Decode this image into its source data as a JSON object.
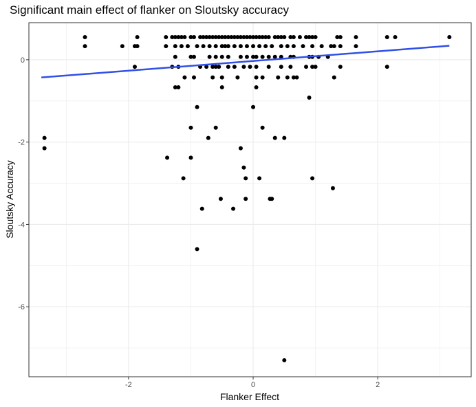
{
  "chart_data": {
    "type": "scatter",
    "title": "Significant main effect of flanker on Sloutsky accuracy",
    "xlabel": "Flanker Effect",
    "ylabel": "Sloutsky Accuracy",
    "xlim": [
      -3.6,
      3.5
    ],
    "ylim": [
      -7.7,
      0.9
    ],
    "x_ticks": [
      -2,
      0,
      2
    ],
    "y_ticks": [
      -6,
      -4,
      -2,
      0
    ],
    "grid": true,
    "colors": {
      "points": "#000000",
      "fit_line": "#3050e6",
      "grid": "#ebebeb",
      "panel_border": "#333333"
    },
    "fit_line": {
      "x": [
        -3.4,
        3.15
      ],
      "y": [
        -0.43,
        0.34
      ]
    },
    "points": [
      [
        -2.7,
        0.55
      ],
      [
        -2.7,
        0.33
      ],
      [
        -2.1,
        0.33
      ],
      [
        -1.9,
        0.33
      ],
      [
        -1.86,
        0.33
      ],
      [
        -1.86,
        0.55
      ],
      [
        -1.9,
        -0.17
      ],
      [
        -1.4,
        0.55
      ],
      [
        -1.3,
        0.55
      ],
      [
        -1.25,
        0.55
      ],
      [
        -1.2,
        0.55
      ],
      [
        -1.15,
        0.55
      ],
      [
        -1.1,
        0.55
      ],
      [
        -1.0,
        0.55
      ],
      [
        -0.95,
        0.55
      ],
      [
        -0.85,
        0.55
      ],
      [
        -0.8,
        0.55
      ],
      [
        -0.75,
        0.55
      ],
      [
        -0.7,
        0.55
      ],
      [
        -0.65,
        0.55
      ],
      [
        -0.6,
        0.55
      ],
      [
        -0.55,
        0.55
      ],
      [
        -0.5,
        0.55
      ],
      [
        -0.45,
        0.55
      ],
      [
        -0.4,
        0.55
      ],
      [
        -0.35,
        0.55
      ],
      [
        -0.3,
        0.55
      ],
      [
        -0.25,
        0.55
      ],
      [
        -0.2,
        0.55
      ],
      [
        -0.15,
        0.55
      ],
      [
        -0.1,
        0.55
      ],
      [
        -0.05,
        0.55
      ],
      [
        0.0,
        0.55
      ],
      [
        0.05,
        0.55
      ],
      [
        0.1,
        0.55
      ],
      [
        0.15,
        0.55
      ],
      [
        0.2,
        0.55
      ],
      [
        0.25,
        0.55
      ],
      [
        0.35,
        0.55
      ],
      [
        0.4,
        0.55
      ],
      [
        0.45,
        0.55
      ],
      [
        0.5,
        0.55
      ],
      [
        0.6,
        0.55
      ],
      [
        0.65,
        0.55
      ],
      [
        0.75,
        0.55
      ],
      [
        0.85,
        0.55
      ],
      [
        0.9,
        0.55
      ],
      [
        0.95,
        0.55
      ],
      [
        1.0,
        0.55
      ],
      [
        1.35,
        0.55
      ],
      [
        1.4,
        0.55
      ],
      [
        1.65,
        0.55
      ],
      [
        2.15,
        0.55
      ],
      [
        2.28,
        0.55
      ],
      [
        3.15,
        0.55
      ],
      [
        -1.4,
        0.33
      ],
      [
        -1.25,
        0.33
      ],
      [
        -1.15,
        0.33
      ],
      [
        -1.05,
        0.33
      ],
      [
        -0.9,
        0.33
      ],
      [
        -0.8,
        0.33
      ],
      [
        -0.7,
        0.33
      ],
      [
        -0.6,
        0.33
      ],
      [
        -0.5,
        0.33
      ],
      [
        -0.45,
        0.33
      ],
      [
        -0.4,
        0.33
      ],
      [
        -0.3,
        0.33
      ],
      [
        -0.2,
        0.33
      ],
      [
        -0.1,
        0.33
      ],
      [
        0.0,
        0.33
      ],
      [
        0.1,
        0.33
      ],
      [
        0.2,
        0.33
      ],
      [
        0.3,
        0.33
      ],
      [
        0.45,
        0.33
      ],
      [
        0.55,
        0.33
      ],
      [
        0.65,
        0.33
      ],
      [
        0.8,
        0.33
      ],
      [
        0.95,
        0.33
      ],
      [
        1.1,
        0.33
      ],
      [
        1.25,
        0.33
      ],
      [
        1.3,
        0.33
      ],
      [
        1.4,
        0.33
      ],
      [
        1.65,
        0.33
      ],
      [
        -1.25,
        0.07
      ],
      [
        -1.0,
        0.07
      ],
      [
        -0.95,
        0.07
      ],
      [
        -0.7,
        0.07
      ],
      [
        -0.6,
        0.07
      ],
      [
        -0.5,
        0.07
      ],
      [
        -0.4,
        0.07
      ],
      [
        -0.2,
        0.07
      ],
      [
        -0.1,
        0.07
      ],
      [
        0.0,
        0.07
      ],
      [
        0.05,
        0.07
      ],
      [
        0.15,
        0.07
      ],
      [
        0.25,
        0.07
      ],
      [
        0.35,
        0.07
      ],
      [
        0.45,
        0.07
      ],
      [
        0.6,
        0.07
      ],
      [
        0.65,
        0.07
      ],
      [
        0.9,
        0.07
      ],
      [
        0.95,
        0.07
      ],
      [
        1.05,
        0.07
      ],
      [
        1.2,
        0.07
      ],
      [
        -1.3,
        -0.17
      ],
      [
        -1.2,
        -0.17
      ],
      [
        -0.85,
        -0.17
      ],
      [
        -0.75,
        -0.17
      ],
      [
        -0.65,
        -0.17
      ],
      [
        -0.6,
        -0.17
      ],
      [
        -0.55,
        -0.17
      ],
      [
        -0.4,
        -0.17
      ],
      [
        -0.3,
        -0.17
      ],
      [
        -0.15,
        -0.17
      ],
      [
        -0.05,
        -0.17
      ],
      [
        0.05,
        -0.17
      ],
      [
        0.25,
        -0.17
      ],
      [
        0.45,
        -0.17
      ],
      [
        0.6,
        -0.17
      ],
      [
        0.85,
        -0.17
      ],
      [
        0.95,
        -0.17
      ],
      [
        1.0,
        -0.17
      ],
      [
        1.4,
        -0.17
      ],
      [
        2.15,
        -0.17
      ],
      [
        -1.1,
        -0.43
      ],
      [
        -0.95,
        -0.43
      ],
      [
        -0.65,
        -0.43
      ],
      [
        -0.5,
        -0.43
      ],
      [
        -0.25,
        -0.43
      ],
      [
        0.05,
        -0.43
      ],
      [
        0.15,
        -0.43
      ],
      [
        0.4,
        -0.43
      ],
      [
        0.55,
        -0.43
      ],
      [
        0.65,
        -0.43
      ],
      [
        0.7,
        -0.43
      ],
      [
        1.3,
        -0.43
      ],
      [
        -1.25,
        -0.67
      ],
      [
        -1.2,
        -0.67
      ],
      [
        -0.5,
        -0.67
      ],
      [
        0.05,
        -0.67
      ],
      [
        0.9,
        -0.92
      ],
      [
        -0.9,
        -1.15
      ],
      [
        0.0,
        -1.15
      ],
      [
        -1.0,
        -1.65
      ],
      [
        -0.6,
        -1.65
      ],
      [
        0.15,
        -1.65
      ],
      [
        -3.35,
        -1.9
      ],
      [
        -3.35,
        -2.15
      ],
      [
        -0.72,
        -1.9
      ],
      [
        0.35,
        -1.9
      ],
      [
        0.5,
        -1.9
      ],
      [
        -0.2,
        -2.15
      ],
      [
        -1.38,
        -2.38
      ],
      [
        -1.0,
        -2.38
      ],
      [
        -0.15,
        -2.62
      ],
      [
        -1.12,
        -2.88
      ],
      [
        -0.12,
        -2.88
      ],
      [
        0.1,
        -2.88
      ],
      [
        0.95,
        -2.88
      ],
      [
        1.28,
        -3.12
      ],
      [
        -0.52,
        -3.38
      ],
      [
        -0.12,
        -3.38
      ],
      [
        0.27,
        -3.38
      ],
      [
        0.3,
        -3.38
      ],
      [
        -0.82,
        -3.62
      ],
      [
        -0.32,
        -3.62
      ],
      [
        -0.9,
        -4.6
      ],
      [
        0.5,
        -7.3
      ]
    ]
  }
}
